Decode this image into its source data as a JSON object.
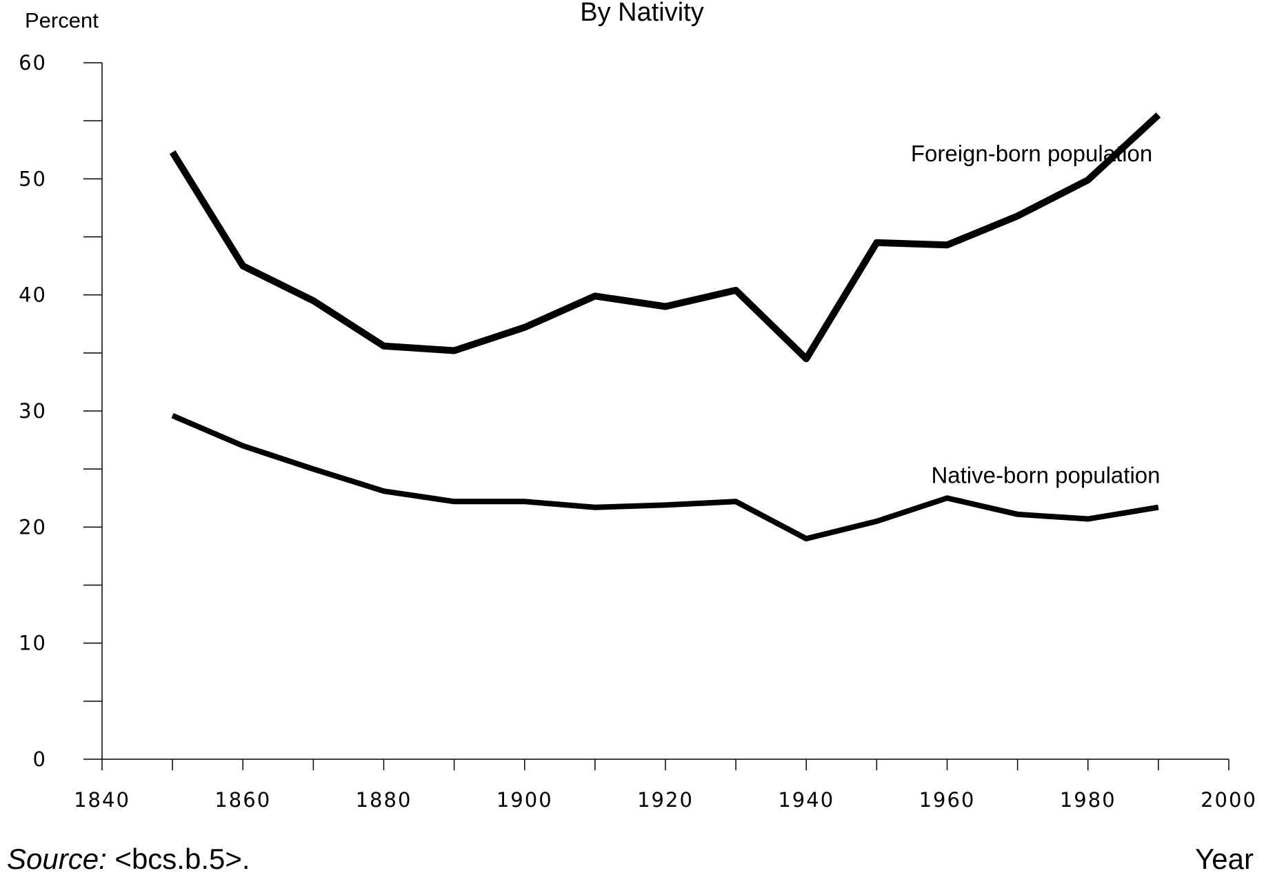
{
  "chart_data": {
    "type": "line",
    "title": "By Nativity",
    "ylabel": "Percent",
    "xlabel": "Year",
    "xlim": [
      1840,
      2000
    ],
    "ylim": [
      0,
      60
    ],
    "x_ticks": [
      1840,
      1860,
      1880,
      1900,
      1920,
      1940,
      1960,
      1980,
      2000
    ],
    "y_ticks": [
      0,
      10,
      20,
      30,
      40,
      50,
      60
    ],
    "grid": false,
    "x": [
      1850,
      1860,
      1870,
      1880,
      1890,
      1900,
      1910,
      1920,
      1930,
      1940,
      1950,
      1960,
      1970,
      1980,
      1990
    ],
    "series": [
      {
        "name": "Foreign-born population",
        "values": [
          52.3,
          42.5,
          39.5,
          35.6,
          35.2,
          37.2,
          39.9,
          39.0,
          40.4,
          34.5,
          44.5,
          44.3,
          46.8,
          49.9,
          55.5
        ],
        "color": "#000000"
      },
      {
        "name": "Native-born population",
        "values": [
          29.6,
          27.0,
          25.0,
          23.1,
          22.2,
          22.2,
          21.7,
          21.9,
          22.2,
          19.0,
          20.5,
          22.5,
          21.1,
          20.7,
          21.7
        ],
        "color": "#000000"
      }
    ],
    "source_label": "Source:",
    "source_text": " <bcs.b.5>."
  }
}
